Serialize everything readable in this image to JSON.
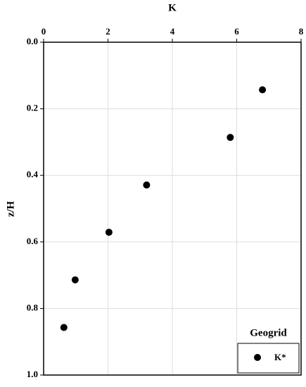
{
  "chart_data": {
    "type": "scatter",
    "xlabel": "K",
    "ylabel": "z/H",
    "xlim": [
      0,
      8
    ],
    "xticks": [
      0,
      2,
      4,
      6,
      8
    ],
    "ylim": [
      0,
      1
    ],
    "yticks": [
      {
        "value": 0,
        "label": "0.0"
      },
      0.2,
      0.4,
      0.6,
      0.8,
      {
        "value": 1,
        "label": "1.0"
      }
    ],
    "y_inverted": true,
    "x_axis_position": "top",
    "grid": true,
    "legend_title": "Geogrid",
    "legend_position": "lower right",
    "series": [
      {
        "name": "K*",
        "color": "#000000",
        "x": [
          6.8,
          5.8,
          3.2,
          2.03,
          0.98,
          0.63
        ],
        "values": [
          0.143,
          0.286,
          0.429,
          0.571,
          0.714,
          0.857
        ]
      }
    ]
  }
}
